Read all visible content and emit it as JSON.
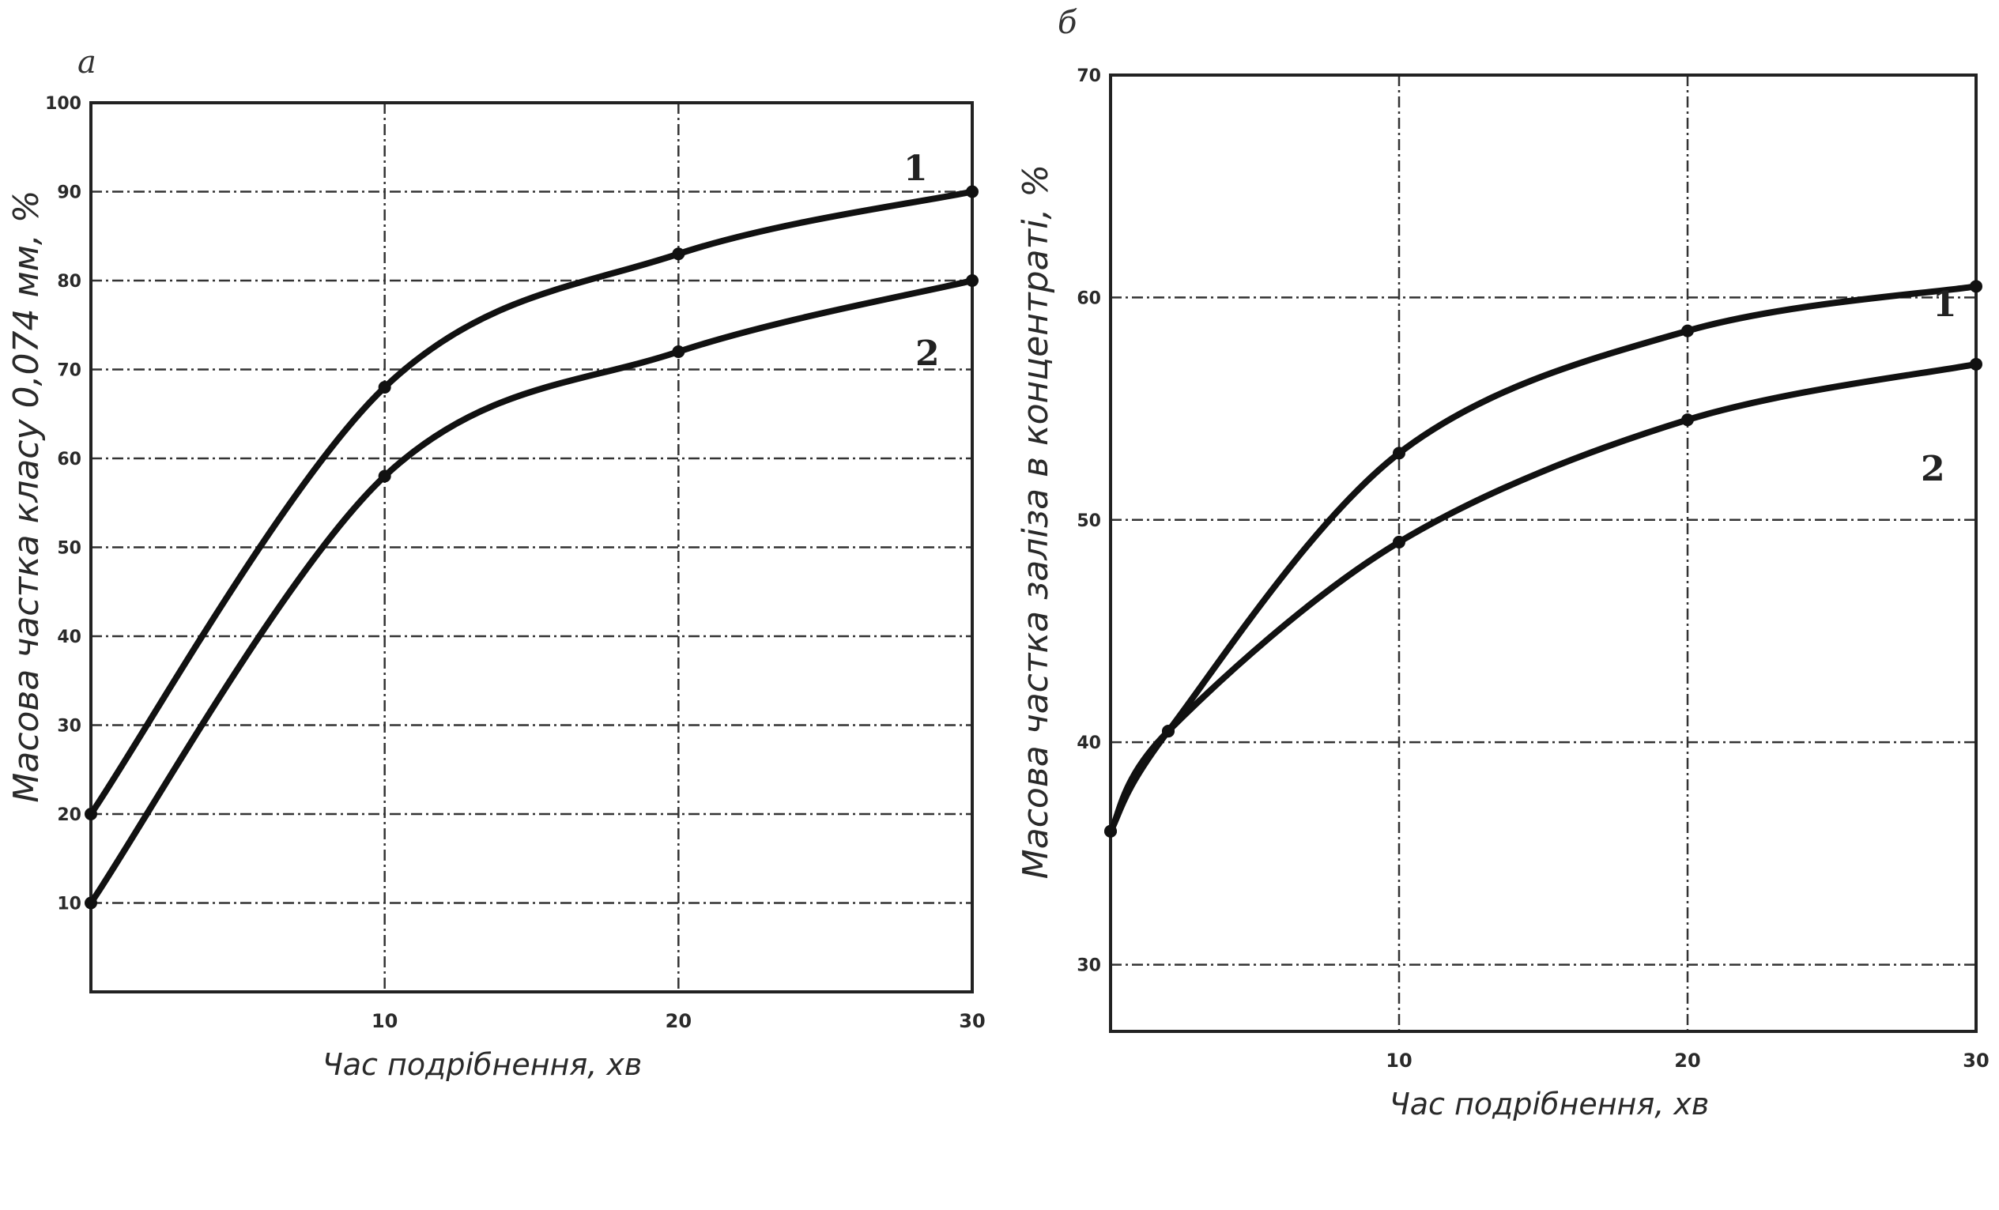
{
  "chart_data": [
    {
      "type": "line",
      "panel_label": "а",
      "xlabel": "Час подрібнення, хв",
      "ylabel": "Масова частка класу 0,074 мм, %",
      "xlim": [
        0,
        30
      ],
      "ylim": [
        0,
        100
      ],
      "xticks": [
        "10",
        "20",
        "30"
      ],
      "yticks": [
        "10",
        "20",
        "30",
        "40",
        "50",
        "60",
        "70",
        "80",
        "90",
        "100"
      ],
      "grid": true,
      "series": [
        {
          "name": "1",
          "x": [
            0,
            10,
            20,
            30
          ],
          "y": [
            20,
            68,
            83,
            90
          ]
        },
        {
          "name": "2",
          "x": [
            0,
            10,
            20,
            30
          ],
          "y": [
            10,
            58,
            72,
            80
          ]
        }
      ]
    },
    {
      "type": "line",
      "panel_label": "б",
      "xlabel": "Час подрібнення, хв",
      "ylabel": "Масова частка заліза в концентраті, %",
      "xlim": [
        0,
        30
      ],
      "ylim": [
        27,
        70
      ],
      "xticks": [
        "10",
        "20",
        "30"
      ],
      "yticks": [
        "30",
        "40",
        "50",
        "60",
        "70"
      ],
      "grid": true,
      "series": [
        {
          "name": "1",
          "x": [
            0,
            2,
            10,
            20,
            30
          ],
          "y": [
            36,
            40.5,
            53,
            58.5,
            60.5
          ]
        },
        {
          "name": "2",
          "x": [
            0,
            2,
            10,
            20,
            30
          ],
          "y": [
            36,
            40.5,
            49,
            54.5,
            57
          ]
        }
      ]
    }
  ],
  "colors": {
    "ink": "#111111",
    "paper": "#ffffff"
  }
}
